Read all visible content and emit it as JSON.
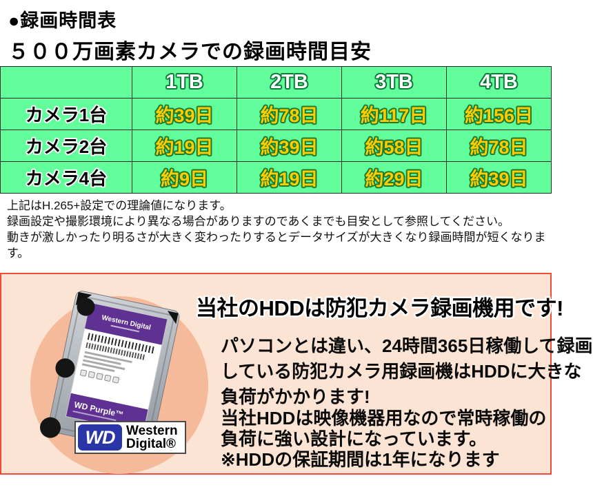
{
  "header": {
    "title": "●録画時間表",
    "subtitle": "５００万画素カメラでの録画時間目安"
  },
  "table": {
    "columns": [
      "",
      "1TB",
      "2TB",
      "3TB",
      "4TB"
    ],
    "rows": [
      {
        "label": "カメラ1台",
        "values": [
          "約39日",
          "約78日",
          "約117日",
          "約156日"
        ]
      },
      {
        "label": "カメラ2台",
        "values": [
          "約19日",
          "約39日",
          "約58日",
          "約78日"
        ]
      },
      {
        "label": "カメラ4台",
        "values": [
          "約9日",
          "約19日",
          "約29日",
          "約39日"
        ]
      }
    ]
  },
  "notes": [
    "上記はH.265+設定での理論値になります。",
    "録画設定や撮影環境により異なる場合がありますのであくまでも目安として参照してください。",
    "動きが激しかったり明るさが大きく変わったりするとデータサイズが大きくなり録画時間が短くなります。"
  ],
  "promo": {
    "title": "当社のHDDは防犯カメラ録画機用です!",
    "para1_line1": "パソコンとは違い、24時間365日稼働して録画",
    "para1_line2": "している防犯カメラ用録画機はHDDに大きな",
    "para1_line3": "負荷がかかります!",
    "para2_line1": "当社HDDは映像機器用なので常時稼働の",
    "para2_line2": "負荷に強い設計になっています。",
    "para2_line3": "※HDDの保証期間は1年になります"
  },
  "hdd": {
    "label_brand": "Western Digital",
    "label_product": "WD Purple™",
    "logo_mark": "WD",
    "logo_line1": "Western",
    "logo_line2": "Digital®"
  },
  "colors": {
    "table_green": "#63fe9c",
    "value_gold": "#ffcc00",
    "header_outline_green": "#0b7a38",
    "value_outline_green": "#1b7a2e",
    "promo_bg": "#fce4d5",
    "promo_circle": "#f5ba9a",
    "promo_border": "#ee4b38",
    "wd_purple": "#5e3192",
    "wd_blue": "#2a35a8"
  }
}
